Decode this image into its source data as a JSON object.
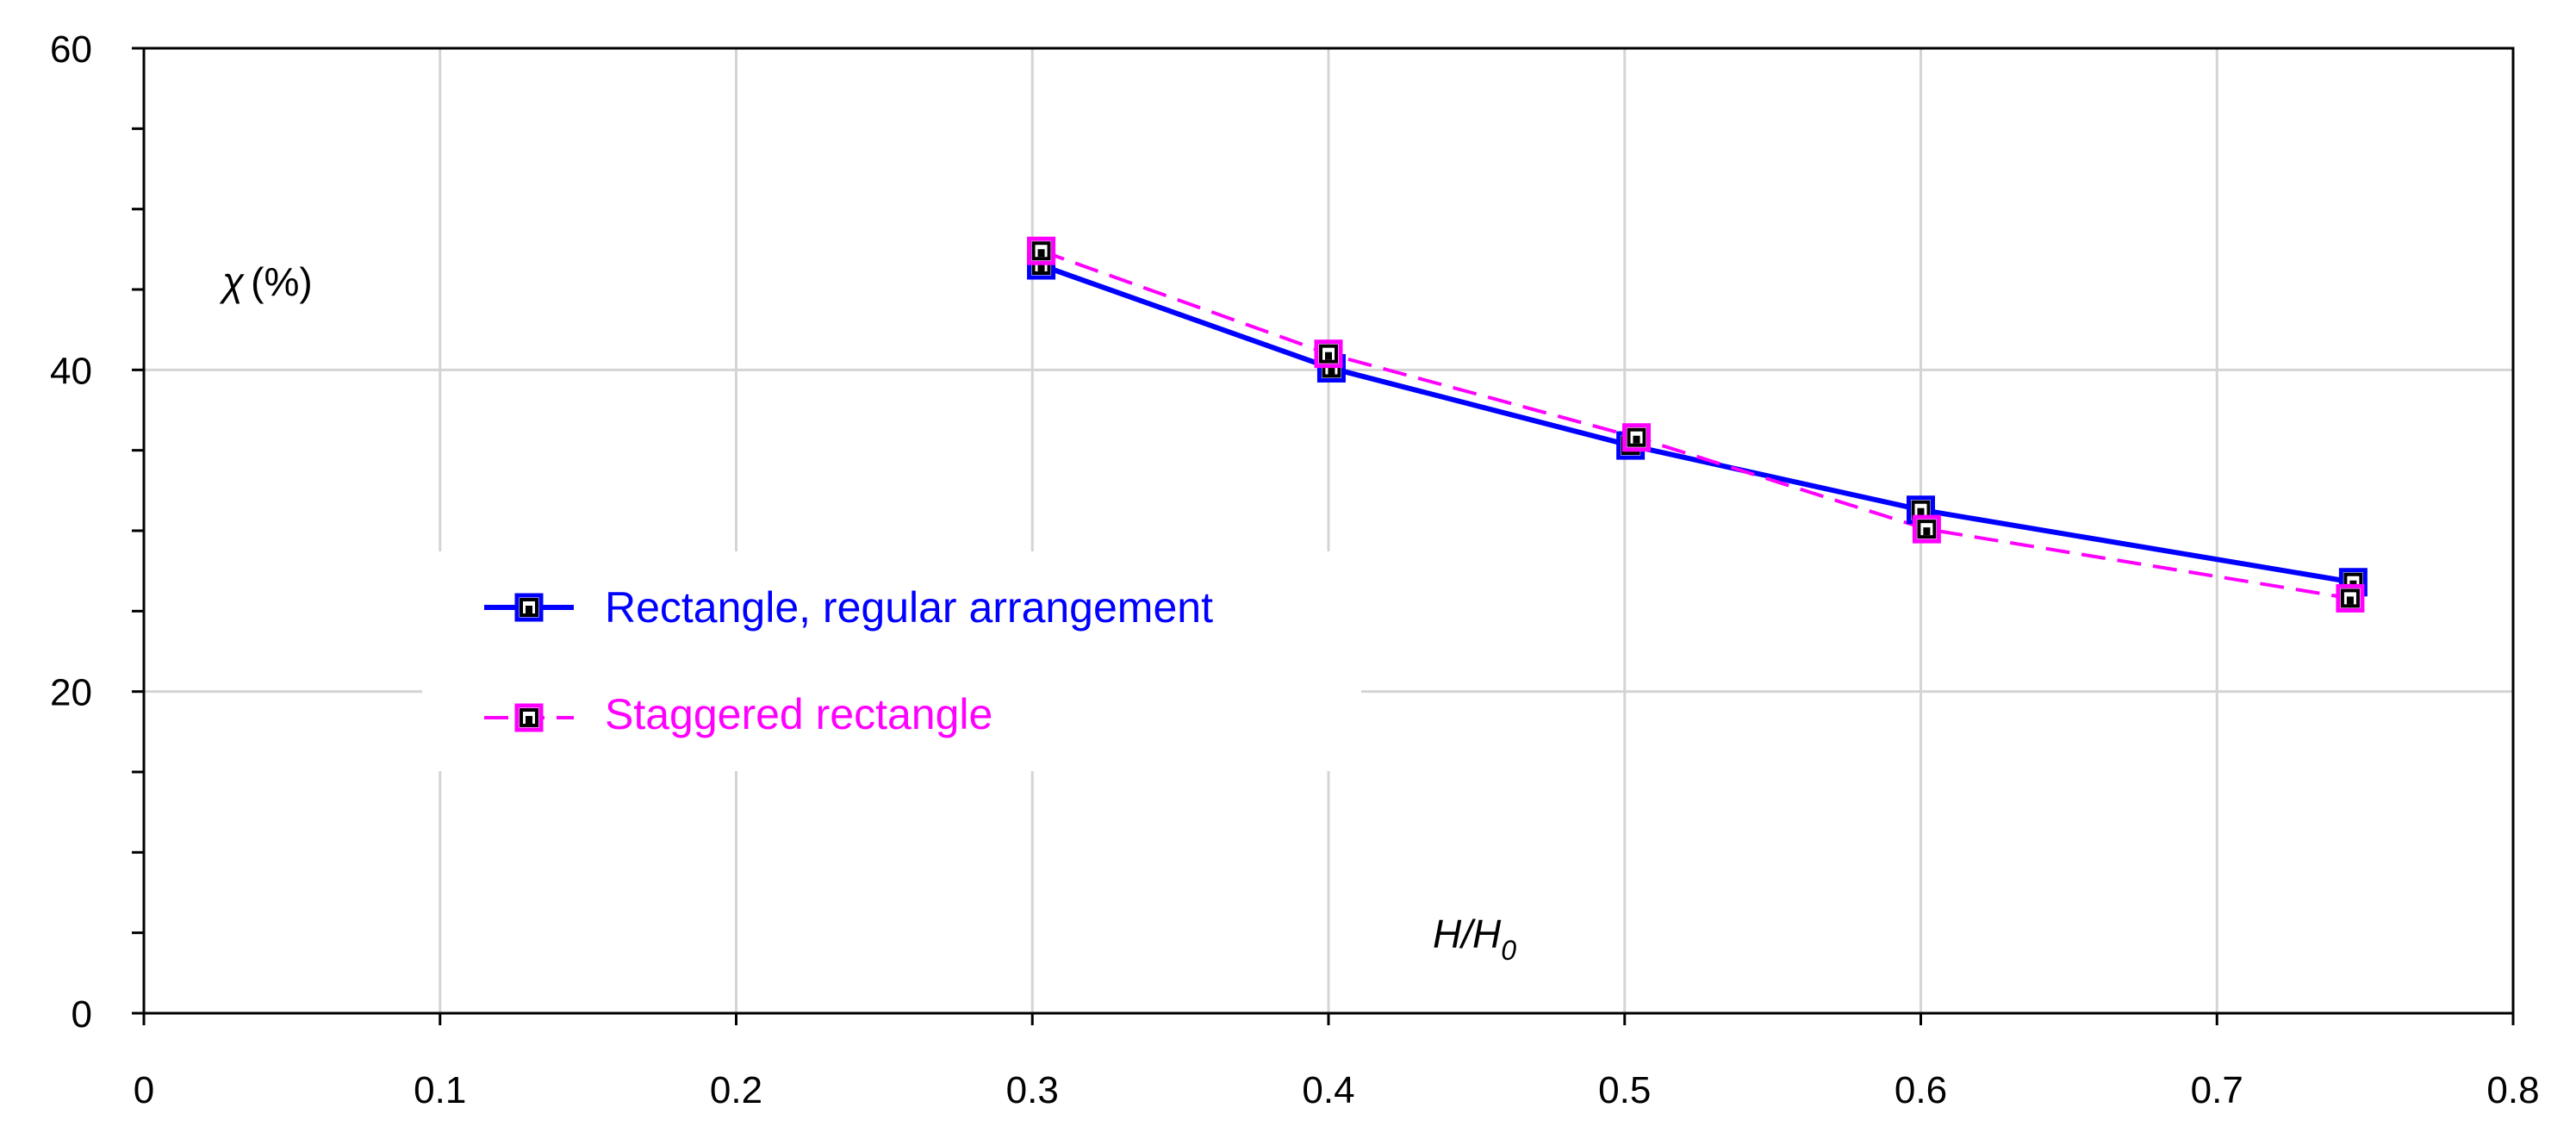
{
  "chart_data": {
    "type": "line",
    "title": "",
    "xlabel": "H/H0",
    "xlabel_parts": {
      "main": "H/H",
      "subscript": "0"
    },
    "ylabel": "χ (%)",
    "ylabel_parts": {
      "symbol": "χ",
      "unit": "(%)"
    },
    "xlim": [
      0,
      0.8
    ],
    "ylim": [
      0,
      60
    ],
    "x_ticks": [
      0,
      0.1,
      0.2,
      0.3,
      0.4,
      0.5,
      0.6,
      0.7,
      0.8
    ],
    "x_tick_labels": [
      "0",
      "0.1",
      "0.2",
      "0.3",
      "0.4",
      "0.5",
      "0.6",
      "0.7",
      "0.8"
    ],
    "y_ticks": [
      0,
      20,
      40,
      60
    ],
    "y_tick_labels": [
      "0",
      "20",
      "40",
      "60"
    ],
    "y_minor_step": 5,
    "grid": true,
    "legend_position": "center-left",
    "series": [
      {
        "name": "Rectangle, regular arrangement",
        "color": "#0000FF",
        "line_style": "solid",
        "marker": "square",
        "x": [
          0.303,
          0.401,
          0.502,
          0.6,
          0.746
        ],
        "y": [
          46.5,
          40.1,
          35.3,
          31.3,
          26.8
        ]
      },
      {
        "name": "Staggered rectangle",
        "color": "#FF00FF",
        "line_style": "dashed",
        "marker": "square",
        "x": [
          0.303,
          0.4,
          0.504,
          0.602,
          0.745
        ],
        "y": [
          47.4,
          41.0,
          35.8,
          30.1,
          25.8
        ]
      }
    ]
  }
}
